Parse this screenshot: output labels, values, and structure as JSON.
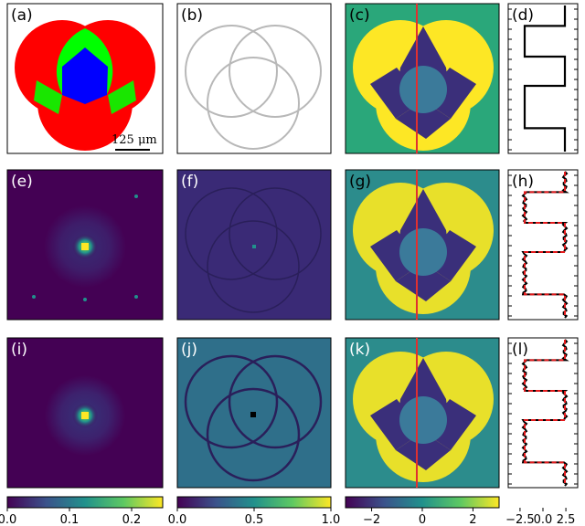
{
  "figure": {
    "panel_labels": [
      "(a)",
      "(b)",
      "(c)",
      "(d)",
      "(e)",
      "(f)",
      "(g)",
      "(h)",
      "(i)",
      "(j)",
      "(k)",
      "(l)"
    ],
    "scale_bar_label": "125 μm"
  },
  "colorbars": [
    {
      "name": "intensity-colorbar-1",
      "ticks": [
        "0.0",
        "0.1",
        "0.2"
      ],
      "range": [
        0,
        0.25
      ]
    },
    {
      "name": "intensity-colorbar-2",
      "ticks": [
        "0.0",
        "0.5",
        "1.0"
      ],
      "range": [
        0,
        1.0
      ]
    },
    {
      "name": "phase-colorbar",
      "ticks": [
        "−2",
        "0",
        "2"
      ],
      "range": [
        -3,
        3
      ]
    },
    {
      "name": "profile-axis",
      "ticks": [
        "−2.5",
        "0.0",
        "2.5"
      ],
      "range": [
        -3.2,
        3.2
      ]
    }
  ],
  "colors": {
    "viridis_dark": "#440154",
    "viridis_navy": "#3a3f86",
    "viridis_teal": "#2a9d8f",
    "viridis_yellow": "#fde725",
    "profile_line": "#000000",
    "fit_line": "#e41a1c",
    "cut_line": "#e03030"
  }
}
